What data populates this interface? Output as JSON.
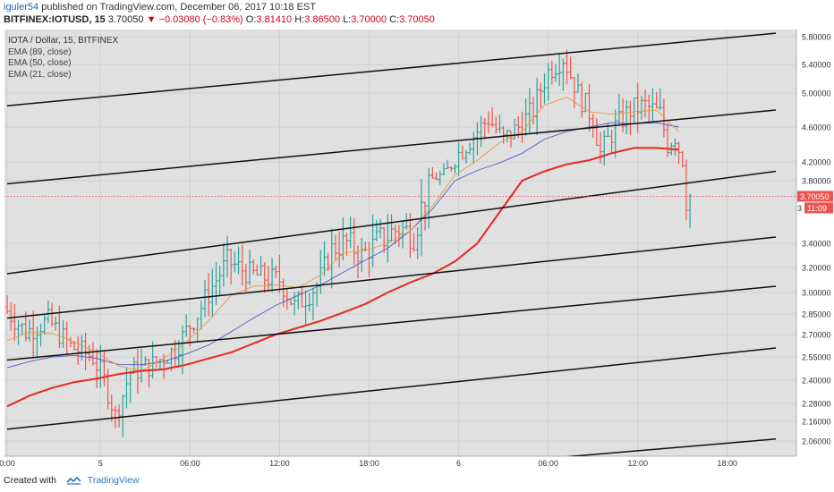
{
  "header": {
    "user": "iguler54",
    "published": "published on TradingView.com, December 06, 2017 10:18 EST",
    "symbol": "BITFINEX:IOTUSD, 15",
    "price": "3.70050",
    "change_arrow": "▼",
    "change": "−0.03080 (−0.83%)",
    "o_label": "O:",
    "o": "3.81410",
    "h_label": "H:",
    "h": "3.86500",
    "l_label": "L:",
    "l": "3.70000",
    "c_label": "C:",
    "c": "3.70050"
  },
  "legend": {
    "title": "IOTA / Dollar, 15, BITFINEX",
    "items": [
      "EMA (89, close)",
      "EMA (50, close)",
      "EMA (21, close)"
    ]
  },
  "chart_data": {
    "type": "line",
    "y_ticks": [
      "5.80000",
      "5.40000",
      "5.00000",
      "4.60000",
      "4.20000",
      "3.80000",
      "3.40000",
      "3.20000",
      "3.00000",
      "2.85000",
      "2.70000",
      "2.55000",
      "2.40000",
      "2.28000",
      "2.16000",
      "2.06000"
    ],
    "y_tick_values": [
      5.8,
      5.4,
      5.0,
      4.6,
      4.2,
      3.8,
      3.4,
      3.2,
      3.0,
      2.85,
      2.7,
      2.55,
      2.4,
      2.28,
      2.16,
      2.06
    ],
    "x_ticks": [
      "0:00",
      "5",
      "06:00",
      "12:00",
      "18:00",
      "6",
      "06:00",
      "12:00",
      "18:00"
    ],
    "x_tick_positions": [
      0,
      25,
      49,
      73,
      97,
      121,
      145,
      169,
      193
    ],
    "price_label": "3.70050",
    "countdown_label": "11:09",
    "countdown_prefix": "3",
    "last_price": 3.7005,
    "colors": {
      "up": "#26a69a",
      "down": "#ef5350",
      "ema89": "#e8281e",
      "ema50": "#4a5cc7",
      "ema21": "#e89b3c",
      "channel": "#111111",
      "grid": "#cfcfcf",
      "background": "#e0e0e0"
    },
    "ema89": [
      [
        0,
        2.26
      ],
      [
        6,
        2.32
      ],
      [
        12,
        2.36
      ],
      [
        18,
        2.39
      ],
      [
        24,
        2.41
      ],
      [
        30,
        2.44
      ],
      [
        36,
        2.46
      ],
      [
        42,
        2.47
      ],
      [
        48,
        2.5
      ],
      [
        54,
        2.54
      ],
      [
        60,
        2.58
      ],
      [
        66,
        2.64
      ],
      [
        72,
        2.7
      ],
      [
        78,
        2.75
      ],
      [
        84,
        2.8
      ],
      [
        90,
        2.86
      ],
      [
        96,
        2.92
      ],
      [
        102,
        3.0
      ],
      [
        108,
        3.08
      ],
      [
        114,
        3.15
      ],
      [
        120,
        3.25
      ],
      [
        126,
        3.4
      ],
      [
        132,
        3.6
      ],
      [
        138,
        3.8
      ],
      [
        144,
        4.0
      ],
      [
        150,
        4.15
      ],
      [
        156,
        4.22
      ],
      [
        162,
        4.3
      ],
      [
        168,
        4.36
      ],
      [
        174,
        4.36
      ],
      [
        180,
        4.34
      ]
    ],
    "ema50": [
      [
        0,
        2.48
      ],
      [
        6,
        2.52
      ],
      [
        12,
        2.55
      ],
      [
        18,
        2.56
      ],
      [
        24,
        2.54
      ],
      [
        30,
        2.5
      ],
      [
        36,
        2.5
      ],
      [
        42,
        2.52
      ],
      [
        48,
        2.57
      ],
      [
        54,
        2.63
      ],
      [
        60,
        2.72
      ],
      [
        66,
        2.82
      ],
      [
        72,
        2.91
      ],
      [
        78,
        2.98
      ],
      [
        84,
        3.06
      ],
      [
        90,
        3.16
      ],
      [
        96,
        3.26
      ],
      [
        102,
        3.36
      ],
      [
        108,
        3.48
      ],
      [
        114,
        3.62
      ],
      [
        120,
        3.8
      ],
      [
        126,
        4.02
      ],
      [
        132,
        4.18
      ],
      [
        138,
        4.3
      ],
      [
        144,
        4.46
      ],
      [
        150,
        4.55
      ],
      [
        156,
        4.6
      ],
      [
        162,
        4.65
      ],
      [
        168,
        4.64
      ],
      [
        174,
        4.65
      ],
      [
        180,
        4.6
      ]
    ],
    "ema21": [
      [
        0,
        2.66
      ],
      [
        6,
        2.72
      ],
      [
        12,
        2.71
      ],
      [
        18,
        2.65
      ],
      [
        24,
        2.58
      ],
      [
        30,
        2.49
      ],
      [
        36,
        2.46
      ],
      [
        42,
        2.54
      ],
      [
        48,
        2.65
      ],
      [
        54,
        2.8
      ],
      [
        60,
        2.98
      ],
      [
        66,
        3.05
      ],
      [
        72,
        3.06
      ],
      [
        78,
        3.04
      ],
      [
        84,
        3.14
      ],
      [
        90,
        3.32
      ],
      [
        96,
        3.34
      ],
      [
        102,
        3.4
      ],
      [
        108,
        3.48
      ],
      [
        114,
        3.64
      ],
      [
        120,
        3.92
      ],
      [
        126,
        4.22
      ],
      [
        132,
        4.42
      ],
      [
        138,
        4.55
      ],
      [
        144,
        4.86
      ],
      [
        150,
        4.95
      ],
      [
        156,
        4.78
      ],
      [
        162,
        4.75
      ],
      [
        168,
        4.78
      ],
      [
        174,
        4.8
      ],
      [
        180,
        4.55
      ]
    ],
    "channels": [
      {
        "x0": 0,
        "y0": 4.85,
        "x1": 206,
        "y1": 5.85
      },
      {
        "x0": 0,
        "y0": 3.78,
        "x1": 206,
        "y1": 4.8
      },
      {
        "x0": 0,
        "y0": 3.15,
        "x1": 206,
        "y1": 4.0
      },
      {
        "x0": 0,
        "y0": 2.82,
        "x1": 206,
        "y1": 3.44
      },
      {
        "x0": 0,
        "y0": 2.53,
        "x1": 206,
        "y1": 3.05
      },
      {
        "x0": 0,
        "y0": 2.12,
        "x1": 206,
        "y1": 2.61
      },
      {
        "x0": 150,
        "y0": 1.98,
        "x1": 206,
        "y1": 2.07
      }
    ]
  },
  "footer": {
    "created": "Created with",
    "brand": "TradingView"
  }
}
